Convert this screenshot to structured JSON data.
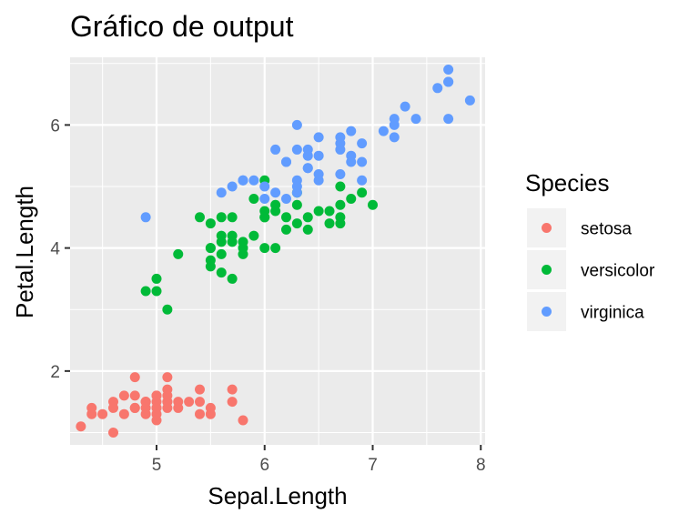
{
  "chart_data": {
    "type": "scatter",
    "title": "Gráfico de output",
    "xlabel": "Sepal.Length",
    "ylabel": "Petal.Length",
    "xlim": [
      4.2,
      8.04
    ],
    "ylim": [
      0.8,
      7.1
    ],
    "x_ticks": [
      5,
      6,
      7,
      8
    ],
    "y_ticks": [
      2,
      4,
      6
    ],
    "grid": true,
    "legend": {
      "title": "Species",
      "position": "right"
    },
    "series": [
      {
        "name": "setosa",
        "color": "#F8766D",
        "points": [
          [
            4.3,
            1.1
          ],
          [
            4.4,
            1.3
          ],
          [
            4.4,
            1.4
          ],
          [
            4.5,
            1.3
          ],
          [
            4.6,
            1.5
          ],
          [
            4.6,
            1.4
          ],
          [
            4.6,
            1.0
          ],
          [
            4.7,
            1.3
          ],
          [
            4.7,
            1.6
          ],
          [
            4.8,
            1.4
          ],
          [
            4.8,
            1.6
          ],
          [
            4.8,
            1.9
          ],
          [
            4.8,
            1.4
          ],
          [
            4.9,
            1.4
          ],
          [
            4.9,
            1.5
          ],
          [
            4.9,
            1.5
          ],
          [
            5.0,
            1.4
          ],
          [
            5.0,
            1.5
          ],
          [
            5.0,
            1.2
          ],
          [
            5.0,
            1.6
          ],
          [
            5.0,
            1.3
          ],
          [
            5.0,
            1.6
          ],
          [
            5.1,
            1.4
          ],
          [
            5.1,
            1.5
          ],
          [
            5.1,
            1.7
          ],
          [
            5.1,
            1.9
          ],
          [
            5.1,
            1.5
          ],
          [
            5.1,
            1.6
          ],
          [
            5.2,
            1.5
          ],
          [
            5.2,
            1.4
          ],
          [
            5.3,
            1.5
          ],
          [
            5.4,
            1.7
          ],
          [
            5.4,
            1.5
          ],
          [
            5.4,
            1.3
          ],
          [
            5.5,
            1.4
          ],
          [
            5.5,
            1.3
          ],
          [
            5.7,
            1.5
          ],
          [
            5.7,
            1.7
          ],
          [
            5.8,
            1.2
          ],
          [
            4.9,
            1.3
          ],
          [
            5.0,
            1.4
          ],
          [
            4.9,
            1.5
          ]
        ]
      },
      {
        "name": "versicolor",
        "color": "#00BA38",
        "points": [
          [
            4.9,
            3.3
          ],
          [
            5.0,
            3.3
          ],
          [
            5.0,
            3.5
          ],
          [
            5.1,
            3.0
          ],
          [
            5.2,
            3.9
          ],
          [
            5.4,
            4.5
          ],
          [
            5.5,
            4.0
          ],
          [
            5.5,
            3.8
          ],
          [
            5.5,
            3.7
          ],
          [
            5.5,
            4.4
          ],
          [
            5.5,
            4.0
          ],
          [
            5.6,
            3.9
          ],
          [
            5.6,
            4.5
          ],
          [
            5.6,
            4.1
          ],
          [
            5.6,
            4.2
          ],
          [
            5.6,
            3.6
          ],
          [
            5.7,
            4.5
          ],
          [
            5.7,
            3.5
          ],
          [
            5.7,
            4.2
          ],
          [
            5.7,
            4.1
          ],
          [
            5.8,
            4.1
          ],
          [
            5.8,
            4.0
          ],
          [
            5.8,
            3.9
          ],
          [
            5.9,
            4.8
          ],
          [
            5.9,
            4.2
          ],
          [
            6.0,
            4.0
          ],
          [
            6.0,
            4.5
          ],
          [
            6.0,
            5.1
          ],
          [
            6.0,
            4.5
          ],
          [
            6.0,
            4.6
          ],
          [
            6.1,
            4.7
          ],
          [
            6.1,
            4.0
          ],
          [
            6.1,
            4.6
          ],
          [
            6.2,
            4.3
          ],
          [
            6.2,
            4.5
          ],
          [
            6.3,
            4.9
          ],
          [
            6.3,
            4.7
          ],
          [
            6.3,
            4.4
          ],
          [
            6.4,
            4.5
          ],
          [
            6.4,
            4.3
          ],
          [
            6.5,
            4.6
          ],
          [
            6.6,
            4.6
          ],
          [
            6.6,
            4.4
          ],
          [
            6.7,
            4.7
          ],
          [
            6.7,
            4.4
          ],
          [
            6.7,
            5.0
          ],
          [
            6.8,
            4.8
          ],
          [
            6.9,
            4.9
          ],
          [
            7.0,
            4.7
          ],
          [
            6.7,
            4.5
          ]
        ]
      },
      {
        "name": "virginica",
        "color": "#619CFF",
        "points": [
          [
            4.9,
            4.5
          ],
          [
            5.6,
            4.9
          ],
          [
            5.7,
            5.0
          ],
          [
            5.8,
            5.1
          ],
          [
            5.8,
            5.1
          ],
          [
            5.9,
            5.1
          ],
          [
            6.0,
            4.8
          ],
          [
            6.0,
            5.0
          ],
          [
            6.1,
            5.6
          ],
          [
            6.1,
            4.9
          ],
          [
            6.2,
            5.4
          ],
          [
            6.2,
            4.8
          ],
          [
            6.3,
            6.0
          ],
          [
            6.3,
            5.1
          ],
          [
            6.3,
            5.6
          ],
          [
            6.3,
            4.9
          ],
          [
            6.3,
            5.0
          ],
          [
            6.4,
            5.6
          ],
          [
            6.4,
            5.3
          ],
          [
            6.4,
            5.5
          ],
          [
            6.5,
            5.8
          ],
          [
            6.5,
            5.1
          ],
          [
            6.5,
            5.5
          ],
          [
            6.7,
            5.7
          ],
          [
            6.7,
            5.8
          ],
          [
            6.7,
            5.6
          ],
          [
            6.8,
            5.9
          ],
          [
            6.8,
            5.5
          ],
          [
            6.9,
            5.7
          ],
          [
            6.9,
            5.1
          ],
          [
            7.1,
            5.9
          ],
          [
            7.2,
            6.1
          ],
          [
            7.2,
            6.0
          ],
          [
            7.2,
            5.8
          ],
          [
            7.3,
            6.3
          ],
          [
            7.4,
            6.1
          ],
          [
            7.6,
            6.6
          ],
          [
            7.7,
            6.7
          ],
          [
            7.7,
            6.9
          ],
          [
            7.7,
            6.7
          ],
          [
            7.7,
            6.1
          ],
          [
            7.9,
            6.4
          ],
          [
            6.2,
            5.4
          ],
          [
            6.4,
            5.3
          ],
          [
            6.7,
            5.2
          ],
          [
            6.8,
            5.4
          ],
          [
            6.5,
            5.2
          ],
          [
            6.9,
            5.4
          ]
        ]
      }
    ]
  }
}
